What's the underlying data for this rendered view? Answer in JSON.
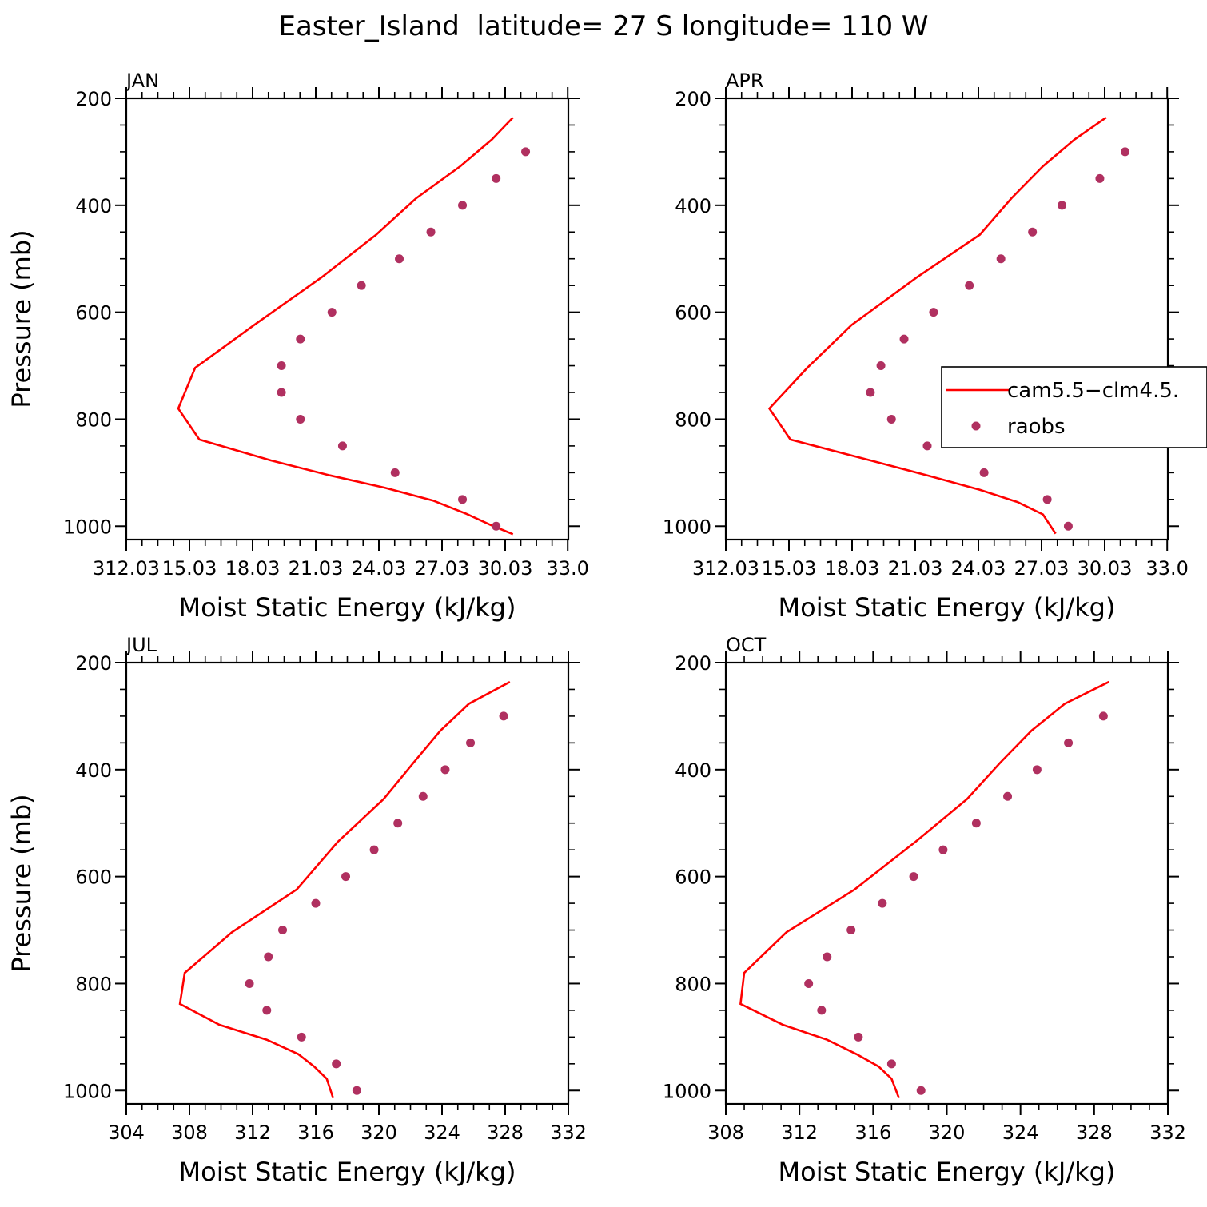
{
  "title": "Easter_Island  latitude= 27 S longitude= 110 W",
  "legend": {
    "placement": "right-center of APR panel",
    "entries": [
      {
        "label": "cam5.5−clm4.5.",
        "kind": "line",
        "color": "#ff0000"
      },
      {
        "label": "raobs",
        "kind": "marker",
        "color": "#b03060"
      }
    ]
  },
  "colors": {
    "model": "#ff0000",
    "obs": "#b03060"
  },
  "chart_data": [
    {
      "type": "line",
      "panel_label": "JAN",
      "xlabel": "Moist Static Energy (kJ/kg)",
      "ylabel": "Pressure (mb)",
      "xlim": [
        312.03,
        333.03
      ],
      "xticks": [
        312.03,
        315.03,
        318.03,
        321.03,
        324.03,
        327.03,
        330.03,
        333.0
      ],
      "xtick_labels": [
        "312.03",
        "15.03",
        "18.03",
        "21.03",
        "24.03",
        "27.03",
        "30.03",
        "33.0"
      ],
      "ylim": [
        1025,
        200
      ],
      "yticks": [
        200,
        400,
        600,
        800,
        1000
      ],
      "grid": false,
      "series": [
        {
          "name": "cam5.5−clm4.5.",
          "style": "line",
          "x": [
            330.4,
            329.4,
            327.9,
            325.8,
            323.9,
            321.3,
            318.1,
            315.3,
            314.5,
            315.5,
            318.9,
            321.7,
            324.3,
            326.6,
            328.2,
            329.3,
            330.4
          ],
          "y": [
            236,
            277,
            327,
            387,
            455,
            535,
            624,
            704,
            780,
            838,
            877,
            905,
            928,
            952,
            977,
            997,
            1015
          ]
        },
        {
          "name": "raobs",
          "style": "markers",
          "x": [
            331.0,
            329.6,
            328.0,
            326.5,
            325.0,
            323.2,
            321.8,
            320.3,
            319.4,
            319.4,
            320.3,
            322.3,
            324.8,
            328.0,
            329.6
          ],
          "y": [
            300,
            350,
            400,
            450,
            500,
            550,
            600,
            650,
            700,
            750,
            800,
            850,
            900,
            950,
            1000
          ]
        }
      ]
    },
    {
      "type": "line",
      "panel_label": "APR",
      "xlabel": "Moist Static Energy (kJ/kg)",
      "ylabel": "",
      "xlim": [
        312.03,
        333.03
      ],
      "xticks": [
        312.03,
        315.03,
        318.03,
        321.03,
        324.03,
        327.03,
        330.03,
        333.0
      ],
      "xtick_labels": [
        "312.03",
        "15.03",
        "18.03",
        "21.03",
        "24.03",
        "27.03",
        "30.03",
        "33.0"
      ],
      "ylim": [
        1025,
        200
      ],
      "yticks": [
        200,
        400,
        600,
        800,
        1000
      ],
      "grid": false,
      "series": [
        {
          "name": "cam5.5−clm4.5.",
          "style": "line",
          "x": [
            330.1,
            328.6,
            327.1,
            325.6,
            324.1,
            321.1,
            318.0,
            315.9,
            314.1,
            315.1,
            318.9,
            321.6,
            324.1,
            325.9,
            327.1,
            327.7
          ],
          "y": [
            236,
            277,
            327,
            387,
            455,
            535,
            624,
            704,
            780,
            838,
            877,
            905,
            932,
            955,
            978,
            1014
          ]
        },
        {
          "name": "raobs",
          "style": "markers",
          "x": [
            331.0,
            329.8,
            328.0,
            326.6,
            325.1,
            323.6,
            321.9,
            320.5,
            319.4,
            318.9,
            319.9,
            321.6,
            324.3,
            327.3,
            328.3
          ],
          "y": [
            300,
            350,
            400,
            450,
            500,
            550,
            600,
            650,
            700,
            750,
            800,
            850,
            900,
            950,
            1000
          ]
        }
      ]
    },
    {
      "type": "line",
      "panel_label": "JUL",
      "xlabel": "Moist Static Energy (kJ/kg)",
      "ylabel": "Pressure (mb)",
      "xlim": [
        304,
        332
      ],
      "xticks": [
        304,
        308,
        312,
        316,
        320,
        324,
        328,
        332
      ],
      "xtick_labels": [
        "304",
        "308",
        "312",
        "316",
        "320",
        "324",
        "328",
        "332"
      ],
      "ylim": [
        1025,
        200
      ],
      "yticks": [
        200,
        400,
        600,
        800,
        1000
      ],
      "grid": false,
      "series": [
        {
          "name": "cam5.5−clm4.5.",
          "style": "line",
          "x": [
            328.3,
            325.7,
            323.9,
            322.2,
            320.3,
            317.4,
            314.8,
            310.7,
            307.7,
            307.4,
            309.9,
            312.9,
            314.9,
            315.9,
            316.7,
            317.1
          ],
          "y": [
            236,
            277,
            327,
            387,
            455,
            535,
            624,
            704,
            780,
            838,
            877,
            905,
            932,
            955,
            978,
            1014
          ]
        },
        {
          "name": "raobs",
          "style": "markers",
          "x": [
            327.9,
            325.8,
            324.2,
            322.8,
            321.2,
            319.7,
            317.9,
            316.0,
            313.9,
            313.0,
            311.8,
            312.9,
            315.1,
            317.3,
            318.6
          ],
          "y": [
            300,
            350,
            400,
            450,
            500,
            550,
            600,
            650,
            700,
            750,
            800,
            850,
            900,
            950,
            1000
          ]
        }
      ]
    },
    {
      "type": "line",
      "panel_label": "OCT",
      "xlabel": "Moist Static Energy (kJ/kg)",
      "ylabel": "",
      "xlim": [
        308,
        332
      ],
      "xticks": [
        308,
        312,
        316,
        320,
        324,
        328,
        332
      ],
      "xtick_labels": [
        "308",
        "312",
        "316",
        "320",
        "324",
        "328",
        "332"
      ],
      "ylim": [
        1025,
        200
      ],
      "yticks": [
        200,
        400,
        600,
        800,
        1000
      ],
      "grid": false,
      "series": [
        {
          "name": "cam5.5−clm4.5.",
          "style": "line",
          "x": [
            328.8,
            326.4,
            324.6,
            322.9,
            321.1,
            318.3,
            315.0,
            311.3,
            309.0,
            308.8,
            311.1,
            313.5,
            315.1,
            316.3,
            317.0,
            317.4
          ],
          "y": [
            236,
            277,
            327,
            387,
            455,
            535,
            624,
            704,
            780,
            838,
            877,
            905,
            932,
            955,
            978,
            1014
          ]
        },
        {
          "name": "raobs",
          "style": "markers",
          "x": [
            328.5,
            326.6,
            324.9,
            323.3,
            321.6,
            319.8,
            318.2,
            316.5,
            314.8,
            313.5,
            312.5,
            313.2,
            315.2,
            317.0,
            318.6
          ],
          "y": [
            300,
            350,
            400,
            450,
            500,
            550,
            600,
            650,
            700,
            750,
            800,
            850,
            900,
            950,
            1000
          ]
        }
      ]
    }
  ]
}
